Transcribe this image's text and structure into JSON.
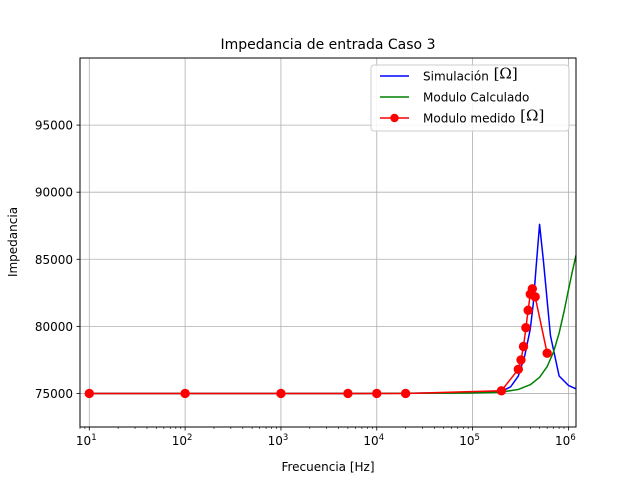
{
  "chart_data": {
    "type": "line",
    "title": "Impedancia de entrada Caso 3",
    "xlabel": "Frecuencia [Hz]",
    "ylabel": "Impedancia",
    "x_scale": "log",
    "xlim": [
      8,
      1200000
    ],
    "ylim": [
      72500,
      100000
    ],
    "grid": true,
    "legend_position": "top-right",
    "x_ticks": [
      {
        "value": 10,
        "base": "10",
        "exp": "1"
      },
      {
        "value": 100,
        "base": "10",
        "exp": "2"
      },
      {
        "value": 1000,
        "base": "10",
        "exp": "3"
      },
      {
        "value": 10000,
        "base": "10",
        "exp": "4"
      },
      {
        "value": 100000,
        "base": "10",
        "exp": "5"
      },
      {
        "value": 1000000,
        "base": "10",
        "exp": "6"
      }
    ],
    "y_ticks": [
      {
        "value": 75000,
        "label": "75000"
      },
      {
        "value": 80000,
        "label": "80000"
      },
      {
        "value": 85000,
        "label": "85000"
      },
      {
        "value": 90000,
        "label": "90000"
      },
      {
        "value": 95000,
        "label": "95000"
      }
    ],
    "series": [
      {
        "name": "Simulación",
        "unit": "[Ω]",
        "color": "#0000ff",
        "marker": false,
        "x": [
          10,
          100,
          1000,
          10000,
          100000,
          200000,
          250000,
          300000,
          350000,
          400000,
          430000,
          460000,
          500000,
          550000,
          650000,
          800000,
          1000000,
          1200000
        ],
        "y": [
          75000,
          75000,
          75000,
          75000,
          75050,
          75150,
          75500,
          76300,
          77800,
          79800,
          81700,
          84400,
          87600,
          84800,
          79300,
          76300,
          75600,
          75350
        ]
      },
      {
        "name": "Modulo Calculado",
        "unit": "",
        "color": "#008000",
        "marker": false,
        "x": [
          10,
          100,
          1000,
          10000,
          100000,
          200000,
          300000,
          400000,
          500000,
          600000,
          700000,
          800000,
          900000,
          1000000,
          1100000,
          1200000
        ],
        "y": [
          75000,
          75000,
          75000,
          75000,
          75030,
          75100,
          75300,
          75650,
          76200,
          77000,
          78100,
          79500,
          81100,
          82700,
          84100,
          85300
        ]
      },
      {
        "name": "Modulo medido",
        "unit": "[Ω]",
        "color": "#ff0000",
        "marker": true,
        "x": [
          10,
          100,
          1000,
          5000,
          10000,
          20000,
          200000,
          300000,
          320000,
          340000,
          360000,
          380000,
          400000,
          420000,
          450000,
          600000
        ],
        "y": [
          75000,
          75000,
          75000,
          75000,
          75000,
          75000,
          75200,
          76800,
          77500,
          78500,
          79900,
          81200,
          82400,
          82800,
          82200,
          78000
        ]
      }
    ]
  }
}
